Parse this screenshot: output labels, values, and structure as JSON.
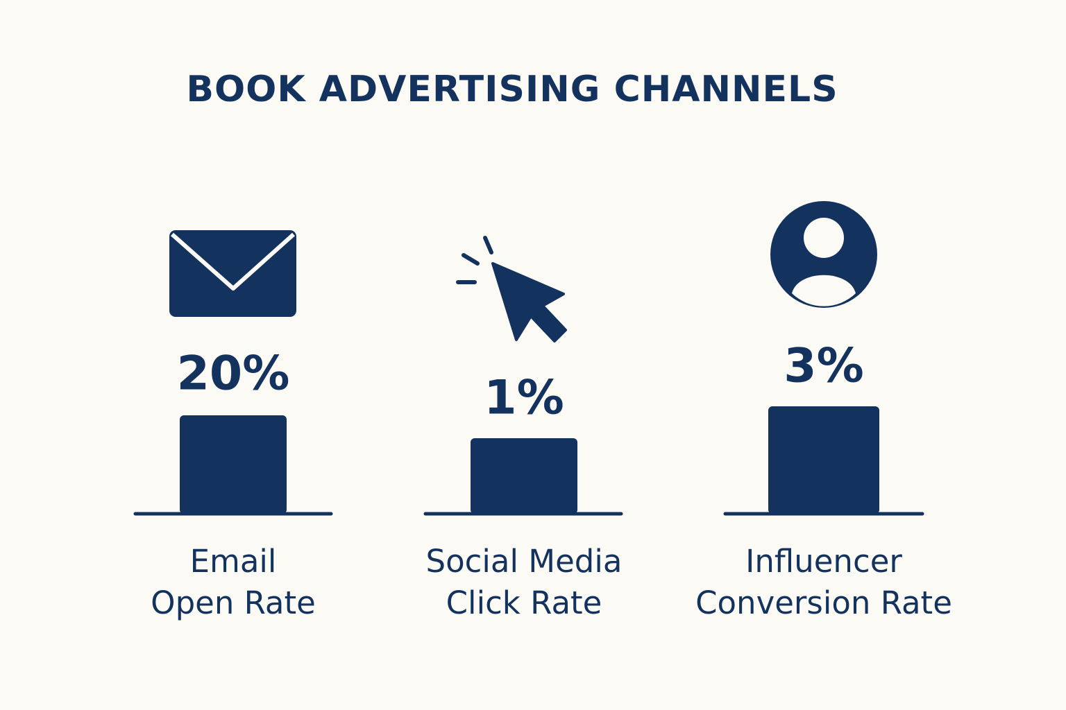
{
  "title": "BOOK ADVERTISING CHANNELS",
  "channels": [
    {
      "value": "20%",
      "label": [
        "Email",
        "Open Rate"
      ]
    },
    {
      "value": "1%",
      "label": [
        "Social Media",
        "Click Rate"
      ]
    },
    {
      "value": "3%",
      "label": [
        "Influencer",
        "Conversion Rate"
      ]
    }
  ]
}
